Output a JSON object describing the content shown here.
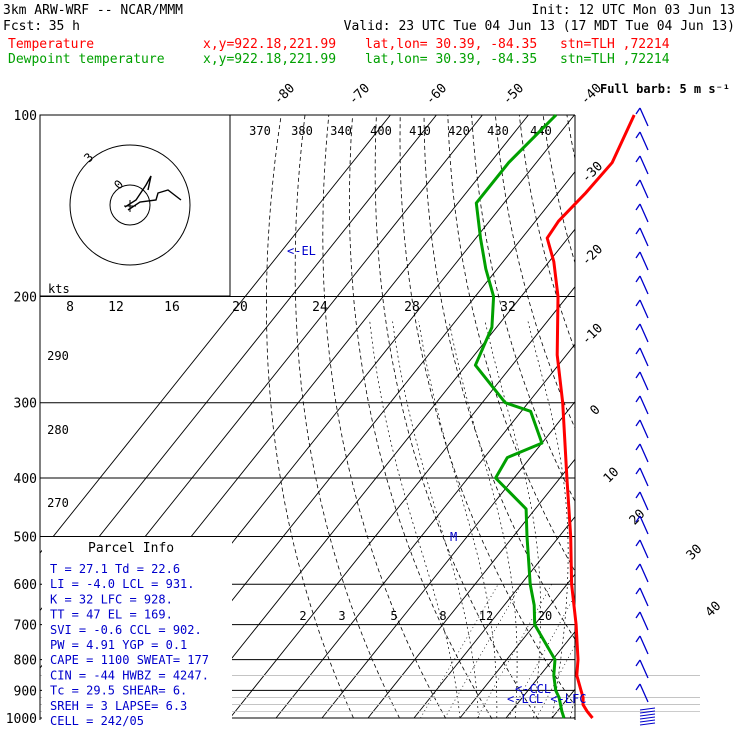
{
  "header": {
    "model": "3km ARW-WRF -- NCAR/MMM",
    "init": "Init: 12 UTC Mon 03 Jun 13",
    "fcst_label": "Fcst:",
    "fcst_value": "35 h",
    "valid": "Valid: 23 UTC Tue 04 Jun 13 (17 MDT Tue 04 Jun 13)",
    "temp_name": "Temperature",
    "dew_name": "Dewpoint temperature",
    "xy": "x,y=922.18,221.99",
    "latlon": "lat,lon= 30.39, -84.35",
    "stn": "stn=TLH ,72214"
  },
  "colors": {
    "temperature": "#ff0000",
    "dewpoint": "#00a000",
    "parcel": "#0000cc",
    "grid": "#000000"
  },
  "chart_data": {
    "type": "line",
    "chart_kind": "skew-T log-P diagram",
    "y_axis": "pressure (hPa), log scale",
    "pressure_range": [
      1000,
      100
    ],
    "pressure_labels": [
      "100",
      "200",
      "300",
      "400",
      "500",
      "600",
      "700",
      "800",
      "900",
      "1000"
    ],
    "skewed_temperature_labels": [
      "-80",
      "-70",
      "-60",
      "-50",
      "-40",
      "-30",
      "-20",
      "-10",
      "0",
      "10",
      "20",
      "30",
      "40"
    ],
    "theta_labels": [
      "370",
      "380",
      "340",
      "400",
      "410",
      "420",
      "430",
      "440",
      "290",
      "280",
      "270"
    ],
    "mixing_ratio_labels": [
      "2",
      "3",
      "5",
      "8",
      "12",
      "20"
    ],
    "series": [
      {
        "name": "Temperature",
        "color": "#ff0000",
        "points": [
          {
            "p": 1000,
            "t": 28.8
          },
          {
            "p": 975,
            "t": 26.5
          },
          {
            "p": 950,
            "t": 24.4
          },
          {
            "p": 925,
            "t": 23.2
          },
          {
            "p": 900,
            "t": 21.5
          },
          {
            "p": 850,
            "t": 18.0
          },
          {
            "p": 800,
            "t": 15.5
          },
          {
            "p": 700,
            "t": 9.0
          },
          {
            "p": 600,
            "t": 1.0
          },
          {
            "p": 500,
            "t": -7.5
          },
          {
            "p": 400,
            "t": -18.5
          },
          {
            "p": 300,
            "t": -32.5
          },
          {
            "p": 250,
            "t": -42.0
          },
          {
            "p": 200,
            "t": -52.0
          },
          {
            "p": 175,
            "t": -59.0
          },
          {
            "p": 160,
            "t": -64.5
          },
          {
            "p": 150,
            "t": -65.0
          },
          {
            "p": 135,
            "t": -64.0
          },
          {
            "p": 120,
            "t": -63.5
          },
          {
            "p": 100,
            "t": -67.0
          }
        ]
      },
      {
        "name": "Dewpoint temperature",
        "color": "#00a000",
        "points": [
          {
            "p": 1000,
            "t": 22.6
          },
          {
            "p": 975,
            "t": 21.0
          },
          {
            "p": 925,
            "t": 18.0
          },
          {
            "p": 900,
            "t": 16.0
          },
          {
            "p": 850,
            "t": 13.0
          },
          {
            "p": 800,
            "t": 10.5
          },
          {
            "p": 700,
            "t": 0.0
          },
          {
            "p": 650,
            "t": -3.5
          },
          {
            "p": 600,
            "t": -8.0
          },
          {
            "p": 500,
            "t": -17.0
          },
          {
            "p": 450,
            "t": -22.0
          },
          {
            "p": 400,
            "t": -34.0
          },
          {
            "p": 370,
            "t": -35.0
          },
          {
            "p": 350,
            "t": -30.0
          },
          {
            "p": 310,
            "t": -38.0
          },
          {
            "p": 300,
            "t": -45.0
          },
          {
            "p": 260,
            "t": -58.0
          },
          {
            "p": 225,
            "t": -61.0
          },
          {
            "p": 200,
            "t": -66.0
          },
          {
            "p": 180,
            "t": -72.5
          },
          {
            "p": 160,
            "t": -79.0
          },
          {
            "p": 140,
            "t": -86.0
          },
          {
            "p": 120,
            "t": -86.0
          },
          {
            "p": 100,
            "t": -84.0
          }
        ]
      }
    ],
    "annotations": [
      "<-EL",
      "M",
      "<-CCL",
      "<-LCL <-LFC"
    ],
    "wind_profile_label": "Full barb: 5 m s⁻¹",
    "hodograph": {
      "units_label": "kts",
      "ring_labels": [
        "3",
        "0"
      ],
      "speed_axis_labels": [
        "8",
        "12",
        "16",
        "20",
        "24",
        "28",
        "32"
      ]
    }
  },
  "parcel_info": {
    "title": "Parcel Info",
    "rows": [
      {
        "k1": "T",
        "v1": "27.1",
        "k2": "Td",
        "v2": "22.6"
      },
      {
        "k1": "LI",
        "v1": "-4.0",
        "k2": "LCL",
        "v2": "931."
      },
      {
        "k1": "K",
        "v1": "32",
        "k2": "LFC",
        "v2": "928."
      },
      {
        "k1": "TT",
        "v1": "47",
        "k2": "EL",
        "v2": "169."
      },
      {
        "k1": "SVI",
        "v1": "-0.6",
        "k2": "CCL",
        "v2": "902."
      },
      {
        "k1": "PW",
        "v1": "4.91",
        "k2": "YGP",
        "v2": "0.1"
      },
      {
        "k1": "CAPE",
        "v1": "1100",
        "k2": "SWEAT",
        "v2": "177"
      },
      {
        "k1": "CIN",
        "v1": "-44",
        "k2": "HWBZ",
        "v2": "4247."
      },
      {
        "k1": "Tc",
        "v1": "29.5",
        "k2": "SHEAR",
        "v2": "6."
      },
      {
        "k1": "SREH",
        "v1": "3",
        "k2": "LAPSE",
        "v2": "6.3"
      }
    ],
    "cell_label": "CELL",
    "cell_value": "242/05"
  }
}
